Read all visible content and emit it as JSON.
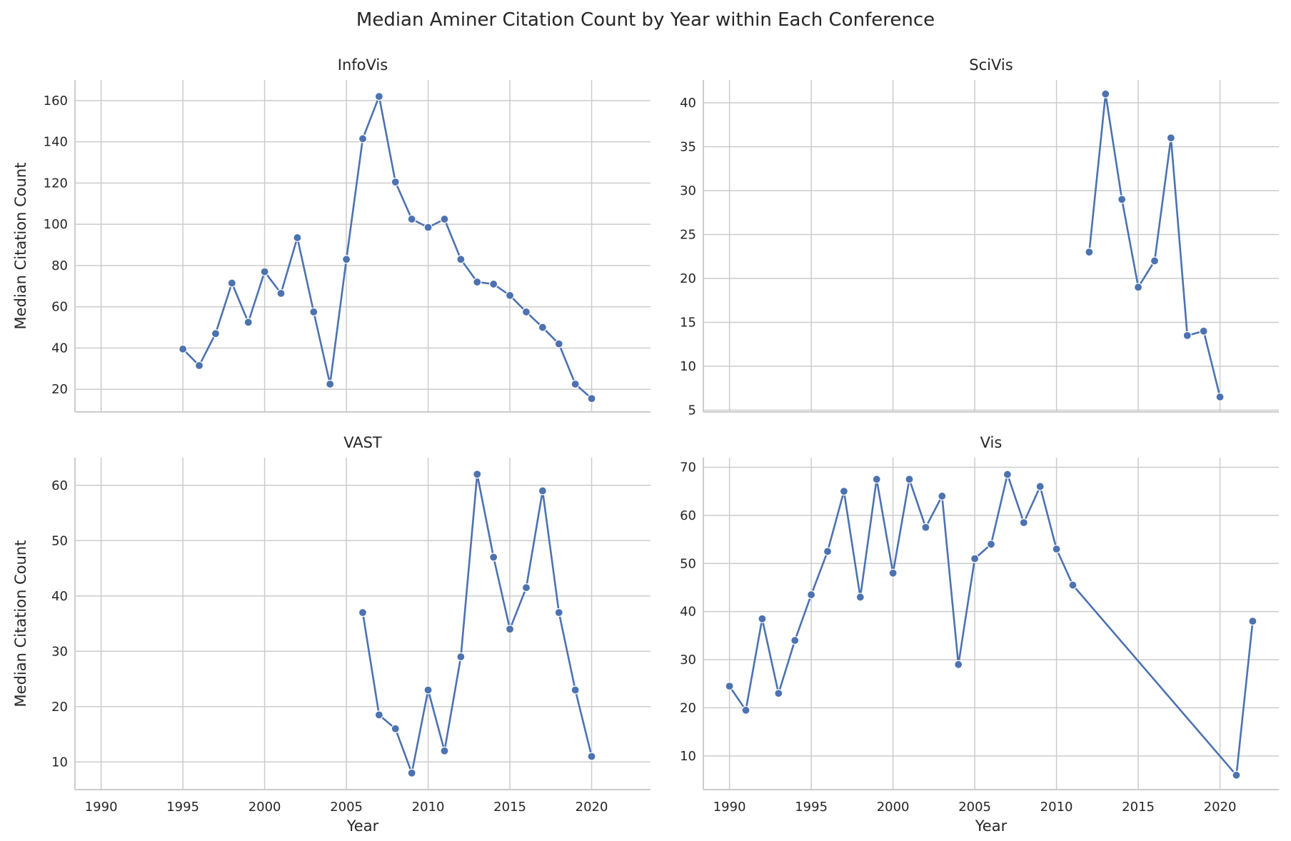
{
  "figure_title": "Median Aminer Citation Count by Year within Each Conference",
  "colors": {
    "line": "#4c72b0",
    "grid": "#cccccc",
    "text": "#262626"
  },
  "chart_data": [
    {
      "type": "line",
      "title": "InfoVis",
      "xlabel": "",
      "ylabel": "Median Citation Count",
      "xlim": [
        1988.4,
        2023.6
      ],
      "ylim": [
        9,
        170
      ],
      "xticks": [
        "1990",
        "1995",
        "2000",
        "2005",
        "2010",
        "2015",
        "2020"
      ],
      "yticks": [
        "20",
        "40",
        "60",
        "80",
        "100",
        "120",
        "140",
        "160"
      ],
      "show_x_ticklabels": false,
      "grid": true,
      "series": [
        {
          "x": [
            1995,
            1996,
            1997,
            1998,
            1999,
            2000,
            2001,
            2002,
            2003,
            2004,
            2005,
            2006,
            2007,
            2008,
            2009,
            2010,
            2011,
            2012,
            2013,
            2014,
            2015,
            2016,
            2017,
            2018,
            2019,
            2020
          ],
          "y": [
            39.5,
            31.5,
            47,
            71.5,
            52.5,
            77,
            66.5,
            93.5,
            57.5,
            22.5,
            83,
            141.5,
            162,
            120.5,
            102.5,
            98.5,
            102.5,
            83,
            72,
            71,
            65.5,
            57.5,
            50,
            42,
            22.5,
            15.5
          ]
        }
      ]
    },
    {
      "type": "line",
      "title": "SciVis",
      "xlabel": "",
      "ylabel": "",
      "xlim": [
        1988.4,
        2023.6
      ],
      "ylim": [
        4.8,
        42.6
      ],
      "xticks": [
        "1990",
        "1995",
        "2000",
        "2005",
        "2010",
        "2015",
        "2020"
      ],
      "yticks": [
        "5",
        "10",
        "15",
        "20",
        "25",
        "30",
        "35",
        "40"
      ],
      "show_x_ticklabels": false,
      "grid": true,
      "series": [
        {
          "x": [
            2012,
            2013,
            2014,
            2015,
            2016,
            2017,
            2018,
            2019,
            2020
          ],
          "y": [
            23,
            41,
            29,
            19,
            22,
            36,
            13.5,
            14,
            6.5
          ]
        }
      ]
    },
    {
      "type": "line",
      "title": "VAST",
      "xlabel": "Year",
      "ylabel": "Median Citation Count",
      "xlim": [
        1988.4,
        2023.6
      ],
      "ylim": [
        5,
        65
      ],
      "xticks": [
        "1990",
        "1995",
        "2000",
        "2005",
        "2010",
        "2015",
        "2020"
      ],
      "yticks": [
        "10",
        "20",
        "30",
        "40",
        "50",
        "60"
      ],
      "show_x_ticklabels": true,
      "grid": true,
      "series": [
        {
          "x": [
            2006,
            2007,
            2008,
            2009,
            2010,
            2011,
            2012,
            2013,
            2014,
            2015,
            2016,
            2017,
            2018,
            2019,
            2020
          ],
          "y": [
            37,
            18.5,
            16,
            8,
            23,
            12,
            29,
            62,
            47,
            34,
            41.5,
            59,
            37,
            23,
            11
          ]
        }
      ]
    },
    {
      "type": "line",
      "title": "Vis",
      "xlabel": "Year",
      "ylabel": "",
      "xlim": [
        1988.4,
        2023.6
      ],
      "ylim": [
        3,
        72
      ],
      "xticks": [
        "1990",
        "1995",
        "2000",
        "2005",
        "2010",
        "2015",
        "2020"
      ],
      "yticks": [
        "10",
        "20",
        "30",
        "40",
        "50",
        "60",
        "70"
      ],
      "show_x_ticklabels": true,
      "grid": true,
      "series": [
        {
          "x": [
            1990,
            1991,
            1992,
            1993,
            1994,
            1995,
            1996,
            1997,
            1998,
            1999,
            2000,
            2001,
            2002,
            2003,
            2004,
            2005,
            2006,
            2007,
            2008,
            2009,
            2010,
            2011,
            2021,
            2022
          ],
          "y": [
            24.5,
            19.5,
            38.5,
            23,
            34,
            43.5,
            52.5,
            65,
            43,
            67.5,
            48,
            67.5,
            57.5,
            64,
            29,
            51,
            54,
            68.5,
            58.5,
            66,
            53,
            45.5,
            6,
            38
          ]
        }
      ]
    }
  ]
}
